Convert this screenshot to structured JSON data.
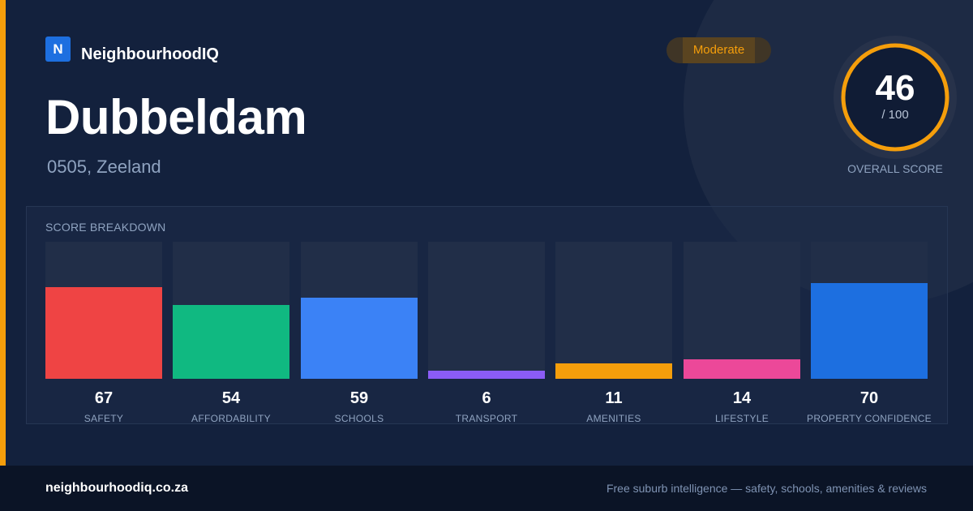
{
  "brand": {
    "logo_letter": "N",
    "name": "NeighbourhoodIQ",
    "logo_color": "#1d6fe0"
  },
  "suburb": {
    "name": "Dubbeldam",
    "location": "0505, Zeeland"
  },
  "rating_badge": {
    "label": "Moderate",
    "color": "#f59e0b"
  },
  "overall": {
    "score": "46",
    "max": "/ 100",
    "label": "OVERALL SCORE",
    "fraction": 0.46,
    "ring_color": "#f59e0b"
  },
  "breakdown": {
    "title": "SCORE BREAKDOWN",
    "items": [
      {
        "value": "67",
        "label": "SAFETY",
        "score": 67,
        "color": "#ef4444"
      },
      {
        "value": "54",
        "label": "AFFORDABILITY",
        "score": 54,
        "color": "#10b981"
      },
      {
        "value": "59",
        "label": "SCHOOLS",
        "score": 59,
        "color": "#3b82f6"
      },
      {
        "value": "6",
        "label": "TRANSPORT",
        "score": 6,
        "color": "#8b5cf6"
      },
      {
        "value": "11",
        "label": "AMENITIES",
        "score": 11,
        "color": "#f59e0b"
      },
      {
        "value": "14",
        "label": "LIFESTYLE",
        "score": 14,
        "color": "#ec4899"
      },
      {
        "value": "70",
        "label": "PROPERTY CONFIDENCE",
        "score": 70,
        "color": "#1d6fe0"
      }
    ]
  },
  "footer": {
    "url": "neighbourhoodiq.co.za",
    "tagline": "Free suburb intelligence — safety, schools, amenities & reviews"
  }
}
